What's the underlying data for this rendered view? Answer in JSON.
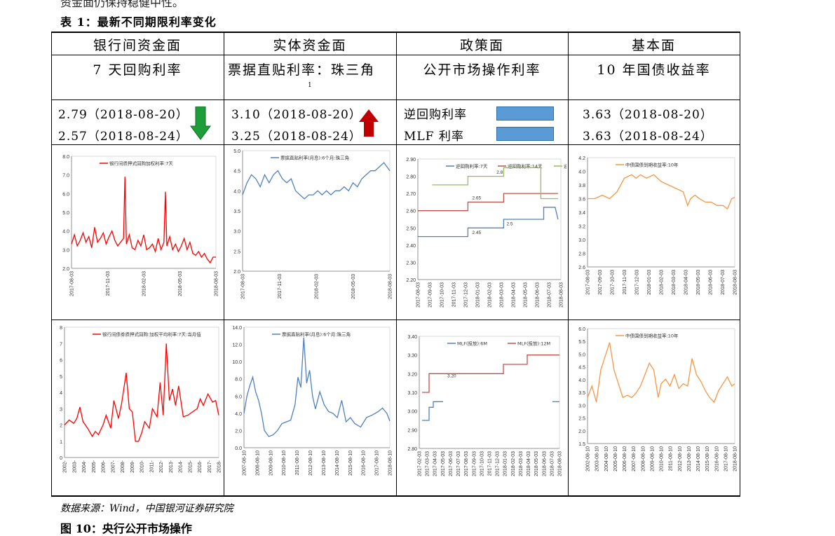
{
  "top_clip_text": "资金面仍保持稳健中性。",
  "caption": "表 1：最新不同期限利率变化",
  "headers": [
    "银行间资金面",
    "实体资金面",
    "政策面",
    "基本面"
  ],
  "subheaders": [
    "7 天回购利率",
    "票据直贴利率：珠三角",
    "公开市场操作利率",
    "10 年国债收益率"
  ],
  "subheader_note": "1",
  "rates": {
    "col1": [
      "2.79（2018-08-20）",
      "2.57（2018-08-24）"
    ],
    "col2": [
      "3.10（2018-08-20）",
      "3.25（2018-08-24）"
    ],
    "col3": [
      "逆回购利率",
      "MLF 利率"
    ],
    "col4": [
      "3.63（2018-08-20）",
      "3.63（2018-08-24）"
    ]
  },
  "colors": {
    "red": "#ff0000",
    "blue": "#4f81bd",
    "green": "#9bbb59",
    "orange": "#f79646",
    "darkred": "#c0504d",
    "arrow_down": "#1e9e3a",
    "arrow_up": "#c00000"
  },
  "icons": {
    "col1": "arrow-down-icon",
    "col2": "arrow-up-icon"
  },
  "source": "数据来源：Wind，中国银河证券研究院",
  "bottom_clip_text": "图 10：央行公开市场操作",
  "chart_data": [
    {
      "type": "line",
      "title": "银行间质押式回购加权利率:7天",
      "ylim": [
        2.0,
        8.0
      ],
      "yticks": [
        "8.0",
        "7.0",
        "6.0",
        "5.0",
        "4.0",
        "3.0",
        "2.0"
      ],
      "xticks": [
        "2017-08-03",
        "2017-11-03",
        "2018-02-03",
        "2018-05-03",
        "2018-08-03"
      ],
      "series": [
        {
          "name": "银行间质押式回购加权利率:7天",
          "color": "#ff0000",
          "x": [
            0,
            0.02,
            0.04,
            0.06,
            0.08,
            0.1,
            0.12,
            0.14,
            0.16,
            0.18,
            0.2,
            0.22,
            0.24,
            0.26,
            0.28,
            0.3,
            0.32,
            0.34,
            0.36,
            0.37,
            0.38,
            0.4,
            0.42,
            0.44,
            0.46,
            0.48,
            0.5,
            0.52,
            0.54,
            0.56,
            0.58,
            0.6,
            0.62,
            0.64,
            0.65,
            0.66,
            0.68,
            0.7,
            0.72,
            0.74,
            0.76,
            0.78,
            0.8,
            0.82,
            0.84,
            0.86,
            0.88,
            0.9,
            0.92,
            0.94,
            0.96,
            0.98,
            1
          ],
          "y": [
            3.3,
            3.8,
            3.2,
            3.5,
            3.9,
            3.4,
            3.7,
            3.1,
            4.2,
            3.4,
            3.6,
            3.9,
            3.3,
            3.7,
            4.0,
            3.5,
            3.2,
            3.4,
            3.6,
            6.9,
            3.3,
            3.8,
            3.1,
            3.0,
            3.5,
            3.2,
            3.8,
            3.0,
            3.1,
            3.3,
            2.9,
            3.6,
            3.0,
            3.4,
            6.1,
            3.2,
            3.7,
            3.0,
            3.3,
            2.9,
            3.2,
            3.6,
            3.0,
            3.4,
            2.8,
            2.7,
            2.9,
            2.6,
            2.8,
            2.5,
            2.3,
            2.6,
            2.6
          ]
        }
      ]
    },
    {
      "type": "line",
      "title": "票据直贴利率(月息):6个月:珠三角",
      "ylim": [
        2.0,
        5.0
      ],
      "yticks": [
        "5.0",
        "4.5",
        "4.0",
        "3.5",
        "3.0",
        "2.5",
        "2.0"
      ],
      "xticks": [
        "2017-08-03",
        "2017-11-03",
        "2018-02-03",
        "2018-05-03",
        "2018-08-03"
      ],
      "series": [
        {
          "name": "票据直贴利率(月息):6个月:珠三角",
          "color": "#4f81bd",
          "x": [
            0,
            0.03,
            0.06,
            0.09,
            0.12,
            0.15,
            0.18,
            0.21,
            0.24,
            0.27,
            0.3,
            0.33,
            0.36,
            0.39,
            0.42,
            0.45,
            0.48,
            0.51,
            0.54,
            0.57,
            0.6,
            0.63,
            0.66,
            0.69,
            0.72,
            0.75,
            0.78,
            0.81,
            0.84,
            0.87,
            0.9,
            0.93,
            0.96,
            0.98,
            1
          ],
          "y": [
            3.9,
            4.2,
            4.4,
            4.3,
            4.1,
            4.4,
            4.2,
            4.4,
            4.5,
            4.3,
            4.2,
            4.3,
            4.0,
            3.9,
            3.8,
            3.9,
            3.9,
            4.0,
            3.9,
            4.0,
            3.9,
            4.0,
            4.0,
            4.1,
            4.0,
            4.2,
            4.1,
            4.3,
            4.4,
            4.5,
            4.5,
            4.6,
            4.7,
            4.6,
            4.5
          ]
        }
      ]
    },
    {
      "type": "line",
      "title": "",
      "ylim": [
        2.2,
        2.9
      ],
      "yticks": [
        "2.90",
        "2.80",
        "2.70",
        "2.60",
        "2.50",
        "2.40",
        "2.30",
        "2.20"
      ],
      "xticks": [
        "2017-08-03",
        "2017-09-03",
        "2017-10-03",
        "2017-11-03",
        "2017-12-03",
        "2018-01-03",
        "2018-02-03",
        "2018-03-03",
        "2018-04-03",
        "2018-05-03",
        "2018-06-03",
        "2018-07-03",
        "2018-08-03"
      ],
      "annotations": [
        "2.8",
        "2.65",
        "2.45",
        "2.5"
      ],
      "series": [
        {
          "name": "逆回购利率:7天",
          "color": "#4f81bd",
          "x": [
            0,
            0.35,
            0.35,
            0.6,
            0.6,
            0.88,
            0.88,
            0.96,
            0.98
          ],
          "y": [
            2.45,
            2.45,
            2.5,
            2.5,
            2.55,
            2.55,
            2.62,
            2.62,
            2.55
          ]
        },
        {
          "name": "逆回购利率:14天",
          "color": "#c0504d",
          "x": [
            0,
            0.35,
            0.35,
            0.6,
            0.6,
            0.7,
            0.7,
            0.98
          ],
          "y": [
            2.6,
            2.6,
            2.65,
            2.65,
            2.7,
            2.7,
            2.7,
            2.7
          ]
        },
        {
          "name": "逆回购利率:28天",
          "color": "#9bbb59",
          "x": [
            0.1,
            0.35,
            0.35,
            0.6,
            0.6,
            0.86,
            0.86,
            0.98
          ],
          "y": [
            2.75,
            2.75,
            2.8,
            2.8,
            2.85,
            2.85,
            2.67,
            2.67
          ]
        }
      ]
    },
    {
      "type": "line",
      "title": "中债国债到期收益率:10年",
      "ylim": [
        2.6,
        4.2
      ],
      "yticks": [
        "4.2",
        "4.0",
        "3.8",
        "3.6",
        "3.4",
        "3.2",
        "3.0",
        "2.8",
        "2.6"
      ],
      "xticks": [
        "2017-08-03",
        "2017-09-03",
        "2017-10-03",
        "2017-11-03",
        "2017-12-03",
        "2018-01-03",
        "2018-02-03",
        "2018-03-03",
        "2018-04-03",
        "2018-05-03",
        "2018-06-03",
        "2018-07-03",
        "2018-08-03"
      ],
      "series": [
        {
          "name": "中债国债到期收益率:10年",
          "color": "#f79646",
          "x": [
            0,
            0.05,
            0.1,
            0.15,
            0.2,
            0.25,
            0.3,
            0.33,
            0.36,
            0.4,
            0.45,
            0.5,
            0.55,
            0.6,
            0.65,
            0.68,
            0.7,
            0.73,
            0.76,
            0.8,
            0.84,
            0.88,
            0.92,
            0.95,
            0.98,
            1
          ],
          "y": [
            3.6,
            3.6,
            3.65,
            3.6,
            3.7,
            3.9,
            3.95,
            3.9,
            3.95,
            3.9,
            3.95,
            3.85,
            3.8,
            3.75,
            3.7,
            3.5,
            3.6,
            3.65,
            3.6,
            3.55,
            3.55,
            3.5,
            3.5,
            3.45,
            3.6,
            3.62
          ]
        }
      ]
    },
    {
      "type": "line",
      "title": "银行间债券质押式回购:加权平均利率:7天:当月值",
      "ylim": [
        0,
        8
      ],
      "yticks": [
        "8",
        "7",
        "6",
        "5",
        "4",
        "3",
        "2",
        "1",
        "0"
      ],
      "xticks": [
        "2002-",
        "2003-",
        "2004-",
        "2005-",
        "2006-",
        "2007-",
        "2008-",
        "2009-",
        "2010-",
        "2011-",
        "2012-",
        "2013-",
        "2014-",
        "2015-",
        "2016-",
        "2017-",
        "2018-"
      ],
      "series": [
        {
          "name": "银行间债券质押式回购:加权平均利率:7天:当月值",
          "color": "#ff0000",
          "x": [
            0,
            0.03,
            0.06,
            0.08,
            0.1,
            0.12,
            0.15,
            0.18,
            0.2,
            0.22,
            0.25,
            0.27,
            0.3,
            0.32,
            0.35,
            0.37,
            0.4,
            0.42,
            0.44,
            0.46,
            0.48,
            0.5,
            0.52,
            0.55,
            0.57,
            0.6,
            0.62,
            0.64,
            0.66,
            0.68,
            0.7,
            0.72,
            0.74,
            0.77,
            0.8,
            0.83,
            0.86,
            0.88,
            0.9,
            0.93,
            0.96,
            0.98,
            1
          ],
          "y": [
            2.0,
            2.3,
            2.1,
            2.4,
            3.1,
            2.2,
            1.8,
            1.3,
            1.6,
            1.4,
            2.0,
            2.6,
            1.8,
            3.5,
            2.4,
            3.3,
            5.2,
            3.0,
            2.8,
            1.0,
            1.0,
            1.5,
            2.2,
            1.8,
            3.0,
            2.5,
            4.6,
            2.6,
            7.0,
            3.5,
            4.2,
            3.2,
            4.4,
            2.5,
            2.6,
            2.8,
            3.0,
            3.6,
            3.2,
            3.9,
            3.4,
            3.5,
            2.6
          ]
        }
      ]
    },
    {
      "type": "line",
      "title": "票据直贴利率(月息):6个月:珠三角",
      "ylim": [
        0,
        14
      ],
      "yticks": [
        "14.0",
        "12.0",
        "10.0",
        "8.0",
        "6.0",
        "4.0",
        "2.0",
        "0.0"
      ],
      "xticks": [
        "2007-08-10",
        "2008-08-10",
        "2009-08-10",
        "2010-08-10",
        "2011-08-10",
        "2012-08-10",
        "2013-08-10",
        "2014-08-10",
        "2015-08-10",
        "2016-08-10",
        "2017-08-10",
        "2018-08-10"
      ],
      "series": [
        {
          "name": "票据直贴利率(月息):6个月:珠三角",
          "color": "#4f81bd",
          "x": [
            0,
            0.02,
            0.04,
            0.06,
            0.08,
            0.1,
            0.12,
            0.14,
            0.17,
            0.2,
            0.23,
            0.26,
            0.29,
            0.32,
            0.35,
            0.37,
            0.39,
            0.41,
            0.43,
            0.45,
            0.47,
            0.49,
            0.52,
            0.55,
            0.58,
            0.61,
            0.64,
            0.67,
            0.7,
            0.73,
            0.76,
            0.8,
            0.84,
            0.88,
            0.92,
            0.95,
            0.98,
            1
          ],
          "y": [
            4.0,
            6.0,
            7.2,
            8.2,
            6.5,
            5.5,
            4.0,
            2.0,
            1.3,
            1.5,
            2.0,
            2.8,
            3.0,
            3.2,
            5.0,
            8.2,
            7.0,
            12.8,
            7.5,
            9.0,
            6.0,
            4.5,
            6.5,
            5.0,
            4.2,
            4.0,
            3.5,
            5.5,
            3.0,
            3.5,
            2.8,
            2.4,
            3.5,
            3.8,
            4.2,
            4.6,
            4.0,
            3.1
          ]
        }
      ]
    },
    {
      "type": "line",
      "title": "",
      "ylim": [
        2.8,
        3.4
      ],
      "yticks": [
        "3.40",
        "3.30",
        "3.20",
        "3.10",
        "3.00",
        "2.90",
        "2.80"
      ],
      "xticks": [
        "2017-02-03",
        "2017-03-03",
        "2017-04-03",
        "2017-05-03",
        "2017-06-03",
        "2017-07-03",
        "2017-08-03",
        "2017-09-03",
        "2017-10-03",
        "2017-11-03",
        "2017-12-03",
        "2018-01-03",
        "2018-02-03",
        "2018-03-03",
        "2018-04-03",
        "2018-05-03",
        "2018-06-03",
        "2018-07-03",
        "2018-08-03"
      ],
      "annotations": [
        "3.20"
      ],
      "series": [
        {
          "name": "MLF(投放):6M",
          "color": "#4f81bd",
          "x": [
            0.02,
            0.07,
            0.07,
            0.1,
            0.1,
            0.17
          ],
          "y": [
            2.95,
            2.95,
            3.02,
            3.02,
            3.05,
            3.05
          ]
        },
        {
          "name": "MLF(投放):12M",
          "color": "#c0504d",
          "x": [
            0.02,
            0.07,
            0.07,
            0.1,
            0.1,
            0.6,
            0.6,
            0.77,
            0.77,
            1
          ],
          "y": [
            3.1,
            3.1,
            3.2,
            3.2,
            3.2,
            3.2,
            3.25,
            3.25,
            3.3,
            3.3
          ]
        }
      ],
      "extra_segment": {
        "color": "#4f81bd",
        "x": [
          0.95,
          1
        ],
        "y": [
          3.05,
          3.05
        ]
      }
    },
    {
      "type": "line",
      "title": "中债国债到期收益率:10年",
      "ylim": [
        1.0,
        6.0
      ],
      "yticks": [
        "6.0",
        "5.5",
        "5.0",
        "4.5",
        "4.0",
        "3.5",
        "3.0",
        "2.5",
        "2.0",
        "1.5"
      ],
      "xticks": [
        "2002-08-10",
        "2003-08-10",
        "2004-08-10",
        "2005-08-10",
        "2006-08-10",
        "2007-08-10",
        "2008-08-10",
        "2009-08-10",
        "2010-08-10",
        "2011-08-10",
        "2012-08-10",
        "2013-08-10",
        "2014-08-10",
        "2015-08-10",
        "2016-08-10",
        "2017-08-10",
        "2018-08-10"
      ],
      "series": [
        {
          "name": "中债国债到期收益率:10年",
          "color": "#f79646",
          "x": [
            0,
            0.03,
            0.06,
            0.09,
            0.12,
            0.15,
            0.18,
            0.21,
            0.24,
            0.27,
            0.3,
            0.33,
            0.36,
            0.39,
            0.42,
            0.45,
            0.48,
            0.5,
            0.53,
            0.56,
            0.59,
            0.62,
            0.65,
            0.68,
            0.71,
            0.74,
            0.77,
            0.8,
            0.83,
            0.86,
            0.89,
            0.92,
            0.95,
            0.98,
            1
          ],
          "y": [
            3.0,
            3.5,
            2.8,
            4.2,
            4.8,
            5.4,
            4.2,
            3.6,
            3.0,
            3.1,
            3.0,
            3.2,
            3.5,
            4.0,
            4.5,
            4.2,
            3.0,
            3.6,
            3.8,
            3.5,
            4.0,
            3.4,
            3.6,
            3.5,
            4.7,
            4.0,
            3.7,
            3.3,
            3.0,
            2.8,
            3.3,
            3.6,
            3.9,
            3.5,
            3.6
          ]
        }
      ]
    }
  ]
}
